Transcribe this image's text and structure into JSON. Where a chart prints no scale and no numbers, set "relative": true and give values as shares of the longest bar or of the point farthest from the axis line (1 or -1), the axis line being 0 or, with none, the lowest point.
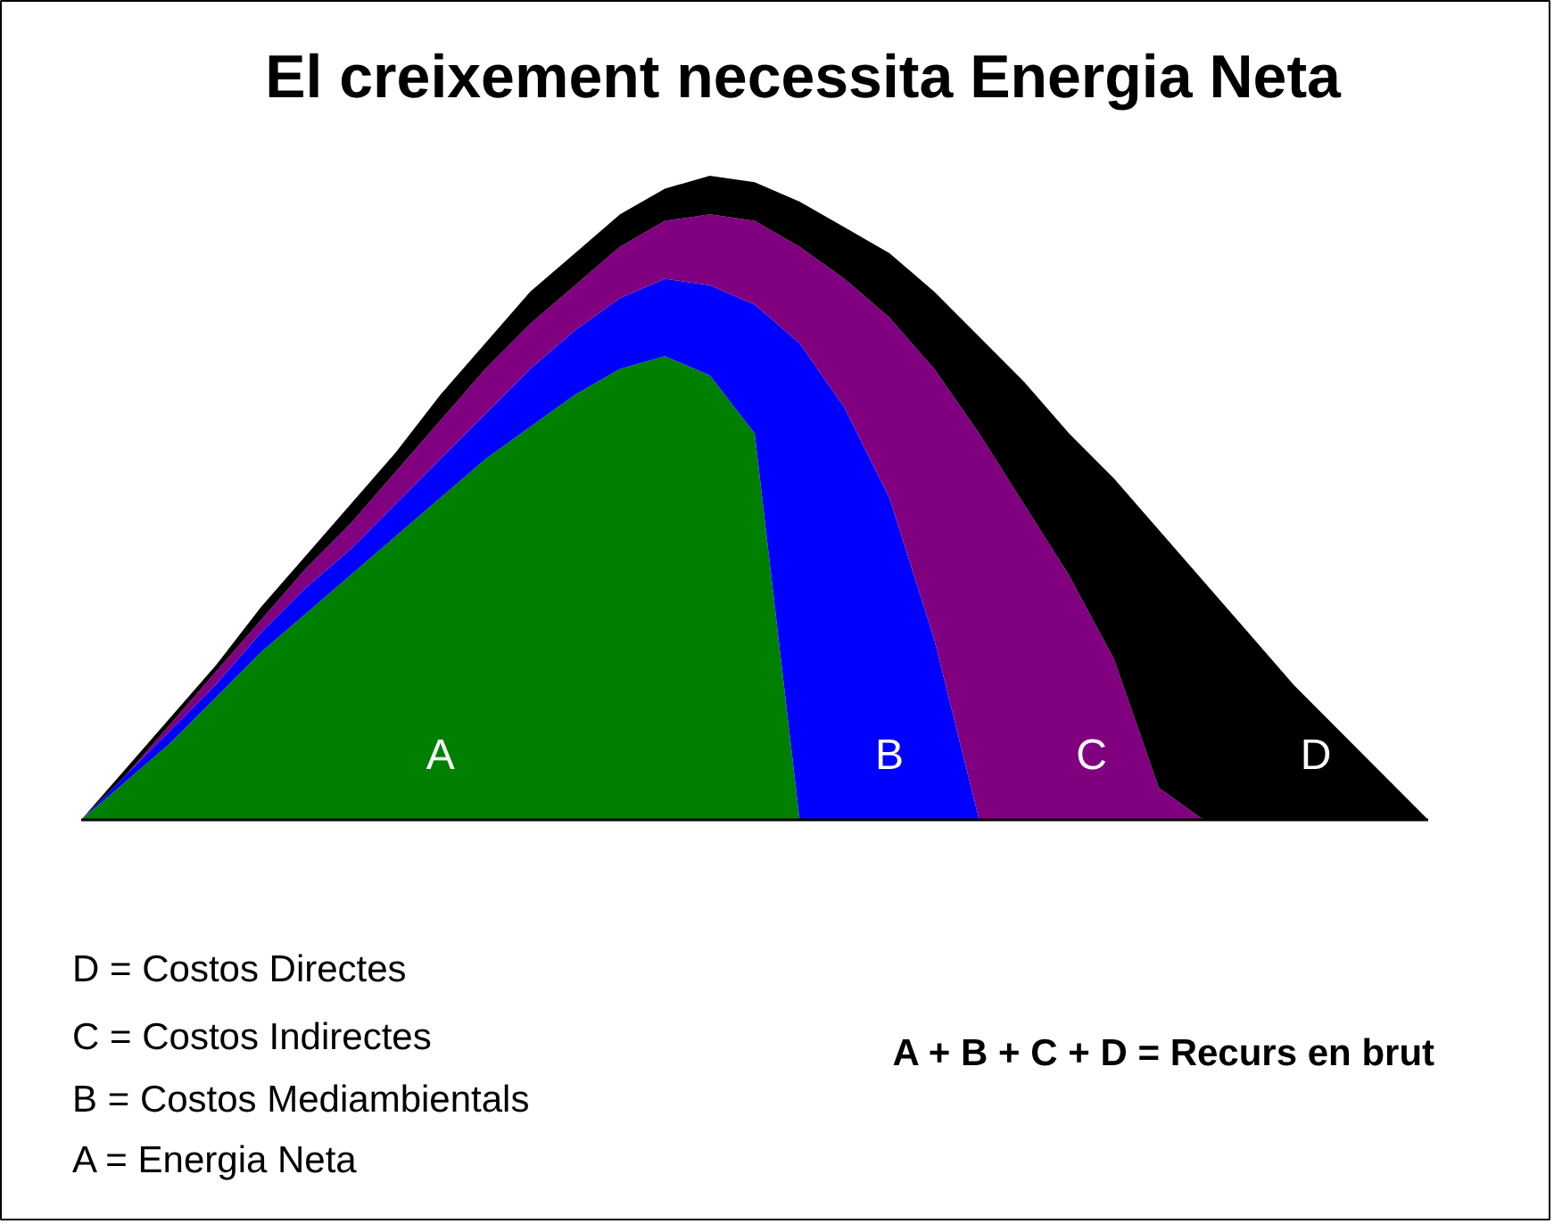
{
  "chart_data": {
    "type": "area",
    "relative": true,
    "stacked": true,
    "title": "El creixement necessita Energia Neta",
    "categories": [
      null,
      null,
      null,
      null,
      null,
      null,
      null,
      null,
      null,
      null,
      null,
      null,
      null,
      null,
      null,
      null,
      null,
      null,
      null,
      null,
      null,
      null,
      null,
      null,
      null,
      null,
      null,
      null,
      null,
      null,
      null
    ],
    "series": [
      {
        "name": "A",
        "color": "#008000",
        "values": [
          0,
          0.06,
          0.12,
          0.19,
          0.26,
          0.32,
          0.38,
          0.44,
          0.5,
          0.56,
          0.61,
          0.66,
          0.7,
          0.72,
          0.69,
          0.6,
          0,
          0,
          0,
          0,
          0,
          0,
          0,
          0,
          0,
          0,
          0,
          0,
          0,
          0,
          0
        ]
      },
      {
        "name": "B",
        "color": "#0000ff",
        "values": [
          0,
          0.01,
          0.02,
          0.02,
          0.03,
          0.04,
          0.04,
          0.05,
          0.06,
          0.07,
          0.09,
          0.1,
          0.11,
          0.12,
          0.14,
          0.2,
          0.74,
          0.64,
          0.5,
          0.28,
          0,
          0,
          0,
          0,
          0,
          0,
          0,
          0,
          0,
          0,
          0
        ]
      },
      {
        "name": "C",
        "color": "#800080",
        "values": [
          0,
          0,
          0.01,
          0.02,
          0.02,
          0.03,
          0.04,
          0.05,
          0.06,
          0.07,
          0.07,
          0.07,
          0.08,
          0.09,
          0.11,
          0.13,
          0.15,
          0.2,
          0.28,
          0.42,
          0.6,
          0.49,
          0.38,
          0.25,
          0.05,
          0,
          0,
          0,
          0,
          0,
          0
        ]
      },
      {
        "name": "D",
        "color": "#000000",
        "values": [
          0,
          0.01,
          0.01,
          0.01,
          0.02,
          0.02,
          0.03,
          0.03,
          0.04,
          0.04,
          0.05,
          0.05,
          0.05,
          0.05,
          0.06,
          0.06,
          0.07,
          0.08,
          0.1,
          0.12,
          0.15,
          0.19,
          0.22,
          0.28,
          0.4,
          0.37,
          0.29,
          0.21,
          0.14,
          0.07,
          0
        ]
      }
    ],
    "annotations": [
      "D = Costos Directes",
      "C = Costos Indirectes",
      "B = Costos Mediambientals",
      "A = Energia Neta",
      "A + B + C + D = Recurs en brut"
    ]
  }
}
